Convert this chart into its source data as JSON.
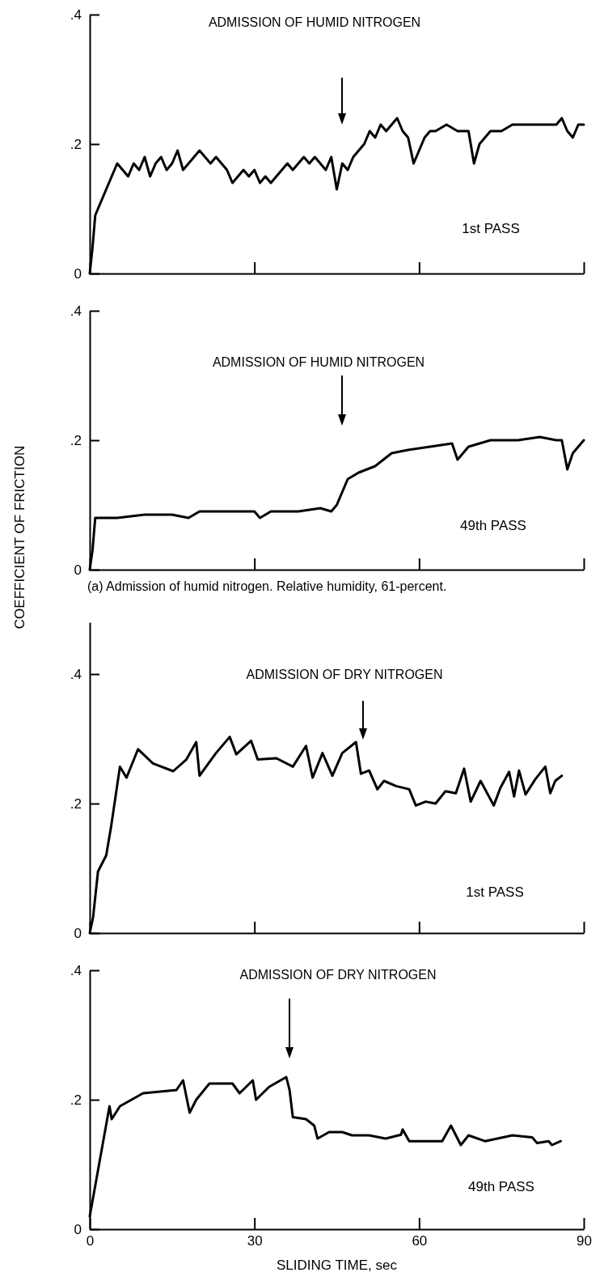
{
  "chart_data": [
    {
      "type": "line",
      "xlim": [
        0,
        90
      ],
      "xticks": [
        {
          "value": 0,
          "label": null
        },
        {
          "value": 30,
          "label": null
        },
        {
          "value": 60,
          "label": null
        },
        {
          "value": 90,
          "label": null
        }
      ],
      "ylim": [
        0,
        0.4
      ],
      "yticks": [
        {
          "value": 0,
          "label": "0"
        },
        {
          "value": 0.2,
          "label": ".2"
        },
        {
          "value": 0.4,
          "label": ".4"
        }
      ],
      "tick_labels": "y",
      "annotations": [
        "ADMISSION OF HUMID NITROGEN",
        "1st PASS"
      ],
      "series": [
        {
          "color": "#000000",
          "x": [
            0,
            0.5,
            1,
            2,
            3,
            4,
            5,
            6,
            7,
            8,
            9,
            10,
            11,
            12,
            13,
            14,
            15,
            16,
            17,
            18,
            19,
            20,
            21,
            22,
            23,
            24,
            25,
            26,
            27,
            28,
            29,
            30,
            31,
            32,
            33,
            34,
            35,
            36,
            37,
            38,
            39,
            40,
            41,
            42,
            43,
            44,
            45,
            46,
            47,
            48,
            49,
            50,
            51,
            52,
            53,
            54,
            55,
            56,
            57,
            58,
            59,
            60,
            61,
            62,
            63,
            65,
            67,
            69,
            70,
            71,
            73,
            75,
            77,
            79,
            81,
            83,
            85,
            86,
            87,
            88,
            89,
            90
          ],
          "values": [
            0,
            0.04,
            0.09,
            0.11,
            0.13,
            0.15,
            0.17,
            0.16,
            0.15,
            0.17,
            0.16,
            0.18,
            0.15,
            0.17,
            0.18,
            0.16,
            0.17,
            0.19,
            0.16,
            0.17,
            0.18,
            0.19,
            0.18,
            0.17,
            0.18,
            0.17,
            0.16,
            0.14,
            0.15,
            0.16,
            0.15,
            0.16,
            0.14,
            0.15,
            0.14,
            0.15,
            0.16,
            0.17,
            0.16,
            0.17,
            0.18,
            0.17,
            0.18,
            0.17,
            0.16,
            0.18,
            0.13,
            0.17,
            0.16,
            0.18,
            0.19,
            0.2,
            0.22,
            0.21,
            0.23,
            0.22,
            0.23,
            0.24,
            0.22,
            0.21,
            0.17,
            0.19,
            0.21,
            0.22,
            0.22,
            0.23,
            0.22,
            0.22,
            0.17,
            0.2,
            0.22,
            0.22,
            0.23,
            0.23,
            0.23,
            0.23,
            0.23,
            0.24,
            0.22,
            0.21,
            0.23,
            0.23
          ]
        }
      ]
    },
    {
      "type": "line",
      "ylabel": "COEFFICIENT OF FRICTION",
      "xlim": [
        0,
        90
      ],
      "xticks": [
        {
          "value": 0,
          "label": null
        },
        {
          "value": 30,
          "label": null
        },
        {
          "value": 60,
          "label": null
        },
        {
          "value": 90,
          "label": null
        }
      ],
      "ylim": [
        0,
        0.4
      ],
      "yticks": [
        {
          "value": 0,
          "label": "0"
        },
        {
          "value": 0.2,
          "label": ".2"
        },
        {
          "value": 0.4,
          "label": ".4"
        }
      ],
      "tick_labels": "y",
      "annotations": [
        "ADMISSION OF HUMID NITROGEN",
        "49th PASS",
        "(a) Admission of humid nitrogen.  Relative humidity, 61-percent."
      ],
      "series": [
        {
          "color": "#000000",
          "x": [
            0,
            0.5,
            1,
            5,
            10,
            15,
            18,
            20,
            25,
            30,
            31,
            33,
            38,
            42,
            44,
            45,
            46,
            47,
            49,
            52,
            55,
            58,
            62,
            66,
            67,
            69,
            73,
            78,
            82,
            85,
            86,
            87,
            88,
            90
          ],
          "values": [
            0,
            0.03,
            0.08,
            0.08,
            0.085,
            0.085,
            0.08,
            0.09,
            0.09,
            0.09,
            0.08,
            0.09,
            0.09,
            0.095,
            0.09,
            0.1,
            0.12,
            0.14,
            0.15,
            0.16,
            0.18,
            0.185,
            0.19,
            0.195,
            0.17,
            0.19,
            0.2,
            0.2,
            0.205,
            0.2,
            0.2,
            0.155,
            0.18,
            0.2
          ]
        }
      ]
    },
    {
      "type": "line",
      "xlim": [
        0,
        90
      ],
      "xticks": [
        {
          "value": 0,
          "label": null
        },
        {
          "value": 30,
          "label": null
        },
        {
          "value": 60,
          "label": null
        },
        {
          "value": 90,
          "label": null
        }
      ],
      "ylim": [
        0,
        0.48
      ],
      "yticks": [
        {
          "value": 0,
          "label": "0"
        },
        {
          "value": 0.2,
          "label": ".2"
        },
        {
          "value": 0.4,
          "label": ".4"
        }
      ],
      "tick_labels": "y",
      "annotations": [
        "ADMISSION OF DRY NITROGEN",
        "1st PASS"
      ],
      "series": [
        {
          "color": "#000000",
          "x": [
            0,
            0.6,
            1.5,
            3,
            3.9,
            5.5,
            6.7,
            8.8,
            11.5,
            15.2,
            17.6,
            19.4,
            20,
            23,
            25.5,
            26.7,
            29.4,
            30.6,
            34,
            37,
            39.4,
            40.6,
            42.4,
            44.2,
            46,
            48.5,
            49.4,
            50.9,
            52.4,
            53.6,
            55.8,
            58.2,
            59.4,
            61.2,
            63,
            64.8,
            66.7,
            68.2,
            69.4,
            71.2,
            73.6,
            74.8,
            76.4,
            77.3,
            78.2,
            79.4,
            81.2,
            83,
            83.9,
            84.8,
            86
          ],
          "values": [
            0,
            0.024,
            0.095,
            0.12,
            0.165,
            0.257,
            0.24,
            0.284,
            0.262,
            0.25,
            0.268,
            0.295,
            0.243,
            0.278,
            0.303,
            0.276,
            0.297,
            0.268,
            0.27,
            0.257,
            0.289,
            0.24,
            0.278,
            0.243,
            0.278,
            0.295,
            0.246,
            0.251,
            0.222,
            0.235,
            0.227,
            0.222,
            0.197,
            0.203,
            0.2,
            0.219,
            0.216,
            0.254,
            0.203,
            0.235,
            0.197,
            0.224,
            0.249,
            0.211,
            0.251,
            0.214,
            0.238,
            0.257,
            0.216,
            0.235,
            0.243
          ]
        }
      ]
    },
    {
      "type": "line",
      "xlabel": "SLIDING TIME, sec",
      "xlim": [
        0,
        90
      ],
      "xticks": [
        0,
        30,
        60,
        90
      ],
      "ylim": [
        0,
        0.4
      ],
      "yticks": [
        {
          "value": 0,
          "label": "0"
        },
        {
          "value": 0.2,
          "label": ".2"
        },
        {
          "value": 0.4,
          "label": ".4"
        }
      ],
      "annotations": [
        "ADMISSION OF DRY NITROGEN",
        "49th PASS"
      ],
      "series": [
        {
          "color": "#000000",
          "x": [
            0,
            3.6,
            4,
            5.5,
            9.7,
            15.8,
            17,
            18.2,
            19.4,
            21.8,
            26,
            27.3,
            29.7,
            30.3,
            32.7,
            35.8,
            36.4,
            37,
            39.4,
            40.9,
            41.5,
            43.6,
            46,
            47.8,
            50.9,
            53.9,
            56.7,
            57,
            58.2,
            61,
            64.2,
            65.8,
            67.6,
            69,
            72,
            77,
            80.6,
            81.5,
            83.6,
            84.2,
            85.8
          ],
          "values": [
            0.02,
            0.19,
            0.17,
            0.19,
            0.21,
            0.215,
            0.23,
            0.18,
            0.2,
            0.225,
            0.225,
            0.21,
            0.23,
            0.2,
            0.22,
            0.235,
            0.215,
            0.173,
            0.17,
            0.16,
            0.14,
            0.15,
            0.15,
            0.145,
            0.145,
            0.14,
            0.146,
            0.154,
            0.136,
            0.136,
            0.136,
            0.16,
            0.13,
            0.145,
            0.136,
            0.145,
            0.142,
            0.133,
            0.136,
            0.13,
            0.136
          ]
        }
      ]
    }
  ]
}
